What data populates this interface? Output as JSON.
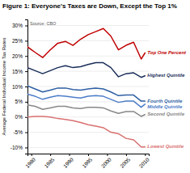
{
  "chart_data": {
    "type": "line",
    "title": "Figure 1: Everyone's Taxes are Down, Except the Top 1%",
    "ylabel": "Average Federal Individual Income Tax Rates",
    "annotations": [
      "Source: CBO"
    ],
    "x": [
      1979,
      1981,
      1983,
      1985,
      1987,
      1989,
      1991,
      1993,
      1995,
      1997,
      1999,
      2001,
      2003,
      2005,
      2007,
      2009,
      2010
    ],
    "series": [
      {
        "name": "Top One Percent",
        "color": "#c00000",
        "values": [
          23.0,
          21.2,
          19.5,
          22.0,
          24.2,
          24.8,
          23.5,
          25.5,
          27.0,
          28.0,
          29.0,
          26.5,
          22.0,
          23.5,
          24.5,
          19.0,
          21.0
        ]
      },
      {
        "name": "Highest Quintile",
        "color": "#1a2e5a",
        "values": [
          16.2,
          15.2,
          14.2,
          15.2,
          16.2,
          16.8,
          16.2,
          16.5,
          17.2,
          17.8,
          17.8,
          16.2,
          13.2,
          14.2,
          14.5,
          13.0,
          13.5
        ]
      },
      {
        "name": "Fourth Quintile",
        "color": "#2e5fa3",
        "values": [
          10.2,
          9.2,
          8.2,
          8.8,
          9.5,
          9.5,
          9.0,
          8.8,
          9.2,
          9.5,
          9.2,
          8.2,
          7.0,
          7.2,
          7.2,
          5.2,
          5.2
        ]
      },
      {
        "name": "Middle Quintile",
        "color": "#4e7dc9",
        "values": [
          7.5,
          6.8,
          5.8,
          6.5,
          7.0,
          6.8,
          6.5,
          6.2,
          6.8,
          7.0,
          6.8,
          5.8,
          4.8,
          5.2,
          5.2,
          3.2,
          4.2
        ]
      },
      {
        "name": "Second Quintile",
        "color": "#888888",
        "values": [
          4.0,
          3.5,
          2.5,
          3.0,
          3.5,
          3.5,
          3.0,
          2.8,
          3.2,
          3.2,
          3.0,
          2.0,
          1.2,
          1.8,
          1.8,
          0.2,
          0.8
        ]
      },
      {
        "name": "Lowest Quintile",
        "color": "#d97070",
        "values": [
          0.0,
          0.2,
          0.2,
          0.0,
          -0.5,
          -0.8,
          -1.2,
          -1.8,
          -2.5,
          -3.0,
          -3.5,
          -5.0,
          -5.5,
          -7.0,
          -7.5,
          -9.8,
          -9.8
        ]
      }
    ],
    "xlim": [
      1979,
      2011
    ],
    "xticks": [
      1980,
      1985,
      1990,
      1995,
      2000,
      2005,
      2010
    ],
    "ylim": [
      -12,
      32
    ],
    "yticks": [
      {
        "value": -10,
        "label": "-10%"
      },
      {
        "value": -5,
        "label": "-5%"
      },
      {
        "value": 0,
        "label": "0%"
      },
      {
        "value": 5,
        "label": "5%"
      },
      {
        "value": 10,
        "label": "10%"
      },
      {
        "value": 15,
        "label": "15%"
      },
      {
        "value": 20,
        "label": "20%"
      },
      {
        "value": 25,
        "label": "25%"
      },
      {
        "value": 30,
        "label": "30%"
      }
    ],
    "grid": true
  }
}
